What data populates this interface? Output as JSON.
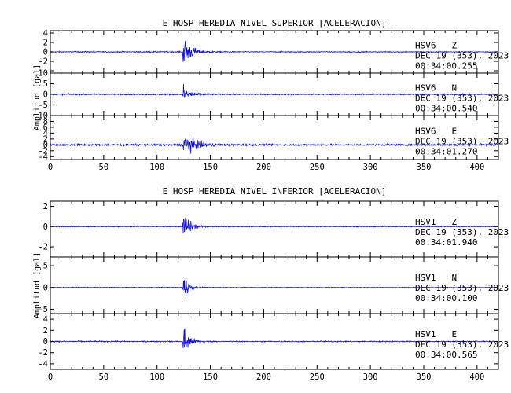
{
  "chart_data": [
    {
      "type": "line",
      "title": "E HOSP HEREDIA NIVEL SUPERIOR [ACELERACION]",
      "ylabel": "Amplitud [gal]",
      "xlim": [
        0,
        420
      ],
      "x_ticks": [
        0,
        50,
        100,
        150,
        200,
        250,
        300,
        350,
        400
      ],
      "grid": false,
      "series": [
        {
          "station": "HSV6",
          "component": "Z",
          "date": "DEC 19 (353), 2023",
          "time": "00:34:00.255",
          "ylim": [
            -4.5,
            4.5
          ],
          "y_ticks": [
            -4,
            -2,
            0,
            2,
            4
          ],
          "y_tick_labels": [
            "",
            "-2",
            "0",
            "2",
            "4"
          ],
          "onset": 124,
          "peak": 4.3,
          "decay": 7,
          "noise": 0.1
        },
        {
          "station": "HSV6",
          "component": "N",
          "date": "DEC 19 (353), 2023",
          "time": "00:34:00.540",
          "ylim": [
            -10,
            10
          ],
          "y_ticks": [
            -10,
            -5,
            0,
            5,
            10
          ],
          "y_tick_labels": [
            "",
            "-5",
            "0",
            "5",
            "10"
          ],
          "onset": 124,
          "peak": 6,
          "decay": 6,
          "noise": 0.3
        },
        {
          "station": "HSV6",
          "component": "E",
          "date": "DEC 19 (353), 2023",
          "time": "00:34:01.270",
          "ylim": [
            -5,
            10
          ],
          "y_ticks": [
            -4,
            -2,
            0,
            2,
            4,
            6,
            8,
            10
          ],
          "y_tick_labels": [
            "-4",
            "-2",
            "0",
            "2",
            "4",
            "6",
            "8",
            "10"
          ],
          "onset": 124,
          "peak": 6.5,
          "decay": 9,
          "noise": 0.3
        }
      ]
    },
    {
      "type": "line",
      "title": "E HOSP HEREDIA NIVEL INFERIOR [ACELERACION]",
      "ylabel": "Amplitud [gal]",
      "xlim": [
        0,
        420
      ],
      "x_ticks": [
        0,
        50,
        100,
        150,
        200,
        250,
        300,
        350,
        400
      ],
      "grid": false,
      "series": [
        {
          "station": "HSV1",
          "component": "Z",
          "date": "DEC 19 (353), 2023",
          "time": "00:34:01.940",
          "ylim": [
            -3,
            2.5
          ],
          "y_ticks": [
            -2,
            0,
            2
          ],
          "y_tick_labels": [
            "-2",
            "0",
            "2"
          ],
          "onset": 124,
          "peak": 2.4,
          "decay": 5,
          "noise": 0.04
        },
        {
          "station": "HSV1",
          "component": "N",
          "date": "DEC 19 (353), 2023",
          "time": "00:34:00.100",
          "ylim": [
            -6,
            7
          ],
          "y_ticks": [
            -5,
            0,
            5
          ],
          "y_tick_labels": [
            "-5",
            "0",
            "5"
          ],
          "onset": 124,
          "peak": 5.5,
          "decay": 4,
          "noise": 0.08
        },
        {
          "station": "HSV1",
          "component": "E",
          "date": "DEC 19 (353), 2023",
          "time": "00:34:00.565",
          "ylim": [
            -5,
            5
          ],
          "y_ticks": [
            -4,
            -2,
            0,
            2,
            4
          ],
          "y_tick_labels": [
            "-4",
            "-2",
            "0",
            "2",
            "4"
          ],
          "onset": 124,
          "peak": 4.3,
          "decay": 5,
          "noise": 0.1
        }
      ]
    }
  ]
}
